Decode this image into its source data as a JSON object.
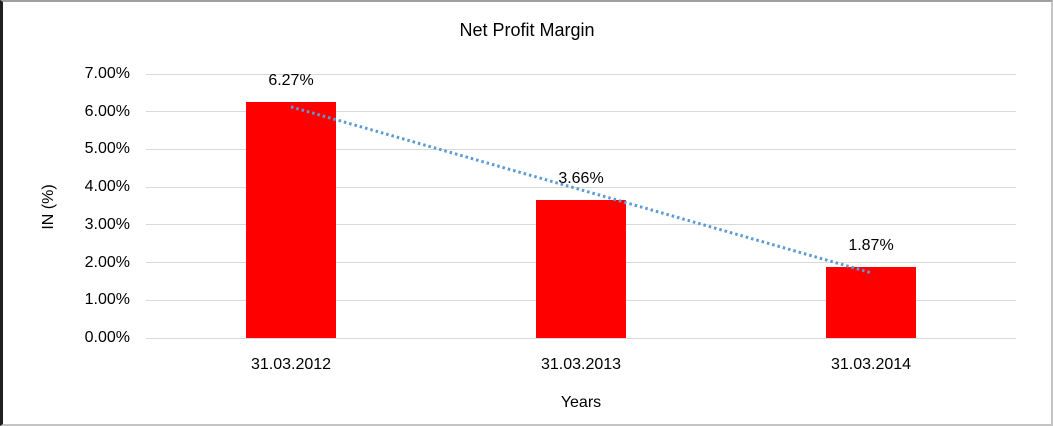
{
  "chart_data": {
    "type": "bar",
    "title": "Net Profit Margin",
    "xlabel": "Years",
    "ylabel": "IN (%)",
    "categories": [
      "31.03.2012",
      "31.03.2013",
      "31.03.2014"
    ],
    "series": [
      {
        "name": "Net Profit Margin",
        "color": "#FF0000",
        "values": [
          6.27,
          3.66,
          1.87
        ]
      }
    ],
    "data_labels": [
      "6.27%",
      "3.66%",
      "1.87%"
    ],
    "y_ticks": [
      "7.00%",
      "6.00%",
      "5.00%",
      "4.00%",
      "3.00%",
      "2.00%",
      "1.00%",
      "0.00%"
    ],
    "ylim": [
      0,
      7
    ],
    "grid": true,
    "gridline_color": "#d9d9d9",
    "legend": "none",
    "trendline": {
      "type": "linear",
      "style": "dotted",
      "color": "#5b9bd5",
      "start_value": 6.13,
      "end_value": 1.73,
      "start_category_index": 0,
      "end_category_index": 2
    }
  }
}
